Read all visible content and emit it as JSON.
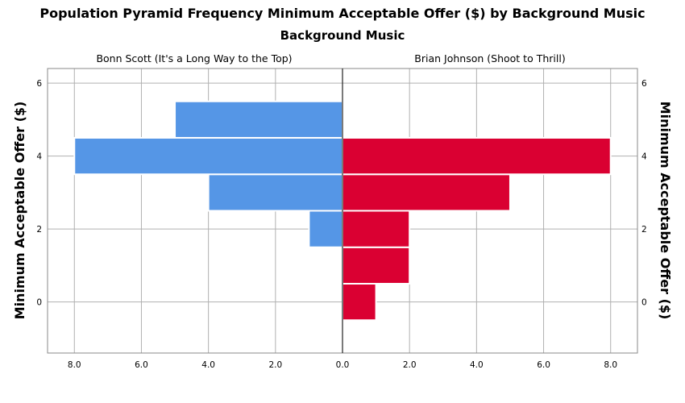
{
  "chart_data": {
    "type": "population-pyramid",
    "title": "Population Pyramid Frequency Minimum Acceptable Offer ($)  by Background Music",
    "subtitle": "Background Music",
    "y_label_left": "Minimum Acceptable Offer ($)",
    "y_label_right": "Minimum Acceptable Offer ($)",
    "ylim": [
      -1.4,
      6.4
    ],
    "y_ticks": [
      0,
      2,
      4,
      6
    ],
    "xlim": [
      0,
      8.8
    ],
    "x_ticks": [
      0,
      2,
      4,
      6,
      8
    ],
    "x_tick_labels": [
      "0.0",
      "2.0",
      "4.0",
      "6.0",
      "8.0"
    ],
    "bin_width": 1,
    "series": [
      {
        "name": "Bonn Scott (It's a Long Way to the Top)",
        "side": "left",
        "color": "#5596E6",
        "bins": [
          {
            "y": 0,
            "count": 0
          },
          {
            "y": 1,
            "count": 0
          },
          {
            "y": 2,
            "count": 1
          },
          {
            "y": 3,
            "count": 4
          },
          {
            "y": 4,
            "count": 8
          },
          {
            "y": 5,
            "count": 5
          }
        ]
      },
      {
        "name": "Brian Johnson (Shoot to Thrill)",
        "side": "right",
        "color": "#DA0032",
        "bins": [
          {
            "y": 0,
            "count": 1
          },
          {
            "y": 1,
            "count": 2
          },
          {
            "y": 2,
            "count": 2
          },
          {
            "y": 3,
            "count": 5
          },
          {
            "y": 4,
            "count": 8
          },
          {
            "y": 5,
            "count": 0
          }
        ]
      }
    ]
  }
}
